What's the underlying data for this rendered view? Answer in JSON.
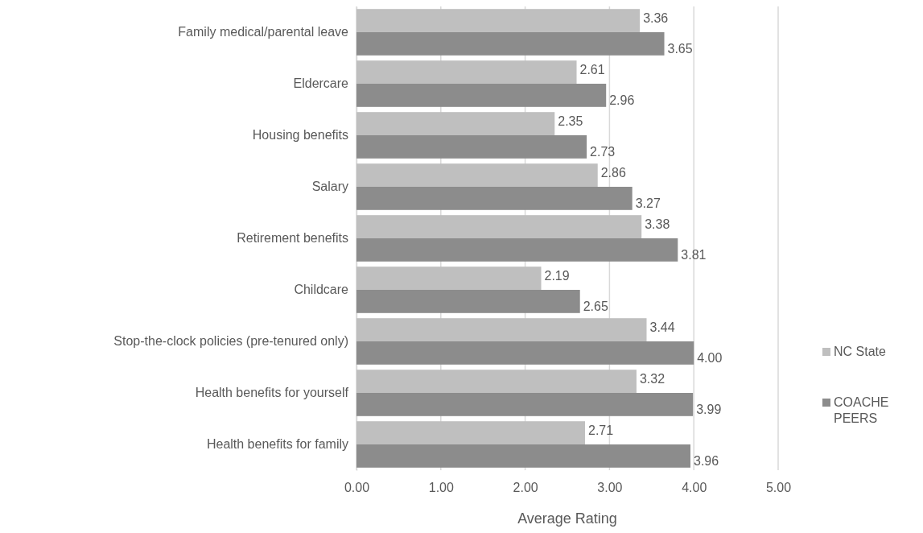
{
  "chart_data": {
    "type": "bar",
    "orientation": "horizontal",
    "xlabel": "Average Rating",
    "categories": [
      "Family medical/parental leave",
      "Eldercare",
      "Housing benefits",
      "Salary",
      "Retirement benefits",
      "Childcare",
      "Stop-the-clock policies (pre-tenured only)",
      "Health benefits for yourself",
      "Health benefits for family"
    ],
    "series": [
      {
        "name": "NC State",
        "color": "#bfbfbf",
        "values": [
          3.36,
          2.61,
          2.35,
          2.86,
          3.38,
          2.19,
          3.44,
          3.32,
          2.71
        ],
        "value_labels": [
          "3.36",
          "2.61",
          "2.35",
          "2.86",
          "3.38",
          "2.19",
          "3.44",
          "3.32",
          "2.71"
        ]
      },
      {
        "name": "COACHE PEERS",
        "color": "#8c8c8c",
        "values": [
          3.65,
          2.96,
          2.73,
          3.27,
          3.81,
          2.65,
          4.0,
          3.99,
          3.96
        ],
        "value_labels": [
          "3.65",
          "2.96",
          "2.73",
          "3.27",
          "3.81",
          "2.65",
          "4.00",
          "3.99",
          "3.96"
        ]
      }
    ],
    "xlim": [
      0,
      5
    ],
    "xticks": [
      {
        "value": 0,
        "label": "0.00"
      },
      {
        "value": 1,
        "label": "1.00"
      },
      {
        "value": 2,
        "label": "2.00"
      },
      {
        "value": 3,
        "label": "3.00"
      },
      {
        "value": 4,
        "label": "4.00"
      },
      {
        "value": 5,
        "label": "5.00"
      }
    ],
    "grid": "x",
    "legend": "right"
  }
}
